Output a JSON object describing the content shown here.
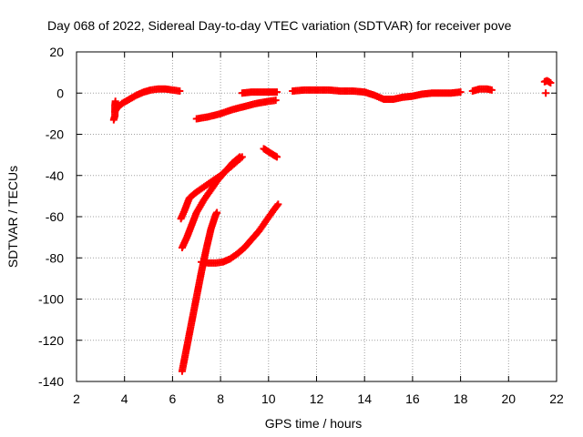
{
  "chart_data": {
    "type": "scatter",
    "title": "Day 068 of 2022, Sidereal Day-to-day VTEC variation (SDTVAR) for receiver pove",
    "xlabel": "GPS time / hours",
    "ylabel": "SDTVAR / TECUs",
    "xlim": [
      2,
      22
    ],
    "ylim": [
      -140,
      20
    ],
    "xticks": [
      2,
      4,
      6,
      8,
      10,
      12,
      14,
      16,
      18,
      20,
      22
    ],
    "yticks": [
      -140,
      -120,
      -100,
      -80,
      -60,
      -40,
      -20,
      0,
      20
    ],
    "grid": true,
    "marker": "plus",
    "color": "#ff0000",
    "series": [
      {
        "x": [
          3.6,
          3.7,
          3.9,
          4.2,
          4.5,
          4.8,
          5.1,
          5.4,
          5.7,
          6.0,
          6.3
        ],
        "y": [
          -9,
          -7,
          -5,
          -3,
          -1,
          0.5,
          1.5,
          2,
          2,
          1.5,
          1
        ]
      },
      {
        "x": [
          3.55,
          3.6,
          3.6,
          3.62
        ],
        "y": [
          -13,
          -11,
          -6,
          -4
        ]
      },
      {
        "x": [
          7.0,
          7.5,
          8.0,
          8.5,
          9.0,
          9.5,
          10.0,
          10.3
        ],
        "y": [
          -12.5,
          -11.5,
          -10,
          -8,
          -6.5,
          -5,
          -4,
          -3.5
        ]
      },
      {
        "x": [
          8.9,
          9.3,
          9.7,
          10.1,
          10.35
        ],
        "y": [
          0,
          0.5,
          0.5,
          0.5,
          0.5
        ]
      },
      {
        "x": [
          11.0,
          11.5,
          12.0,
          12.5,
          13.0,
          13.5,
          14.0,
          14.4,
          14.8,
          15.2,
          15.6,
          16.0,
          16.4,
          16.8,
          17.2,
          17.6,
          18.0
        ],
        "y": [
          1,
          1.5,
          1.5,
          1.5,
          1,
          1,
          0.5,
          -1,
          -3,
          -3,
          -2,
          -1.5,
          -0.5,
          0,
          0,
          0,
          0.5
        ]
      },
      {
        "x": [
          18.5,
          18.8,
          19.1,
          19.3
        ],
        "y": [
          1,
          2,
          2,
          1.5
        ]
      },
      {
        "x": [
          21.5,
          21.6,
          21.75
        ],
        "y": [
          5.5,
          6,
          5
        ]
      },
      {
        "x": [
          21.55
        ],
        "y": [
          0
        ]
      },
      {
        "x": [
          6.35,
          6.5,
          6.7,
          7.0,
          7.5,
          8.0,
          8.5,
          8.9
        ],
        "y": [
          -61,
          -57,
          -51,
          -48,
          -44,
          -40,
          -35,
          -31
        ]
      },
      {
        "x": [
          6.4,
          6.6,
          6.8,
          7.0,
          7.3,
          7.6,
          7.9,
          8.2,
          8.5,
          8.8
        ],
        "y": [
          -75,
          -70,
          -64,
          -58,
          -52,
          -47,
          -42,
          -38,
          -34,
          -31
        ]
      },
      {
        "x": [
          7.2,
          7.5,
          7.8,
          8.1,
          8.4,
          8.7,
          9.0,
          9.3,
          9.6,
          9.9,
          10.2,
          10.4
        ],
        "y": [
          -82,
          -82.5,
          -82.5,
          -82,
          -80.5,
          -78,
          -75,
          -71,
          -67,
          -62,
          -57,
          -54
        ]
      },
      {
        "x": [
          6.4,
          6.6,
          6.8,
          7.0,
          7.2,
          7.4,
          7.6,
          7.8,
          7.85
        ],
        "y": [
          -135,
          -123,
          -111,
          -99,
          -87,
          -76,
          -66,
          -59,
          -58
        ]
      },
      {
        "x": [
          9.8,
          10.0,
          10.2,
          10.35
        ],
        "y": [
          -27,
          -28.5,
          -30,
          -31
        ]
      }
    ]
  }
}
